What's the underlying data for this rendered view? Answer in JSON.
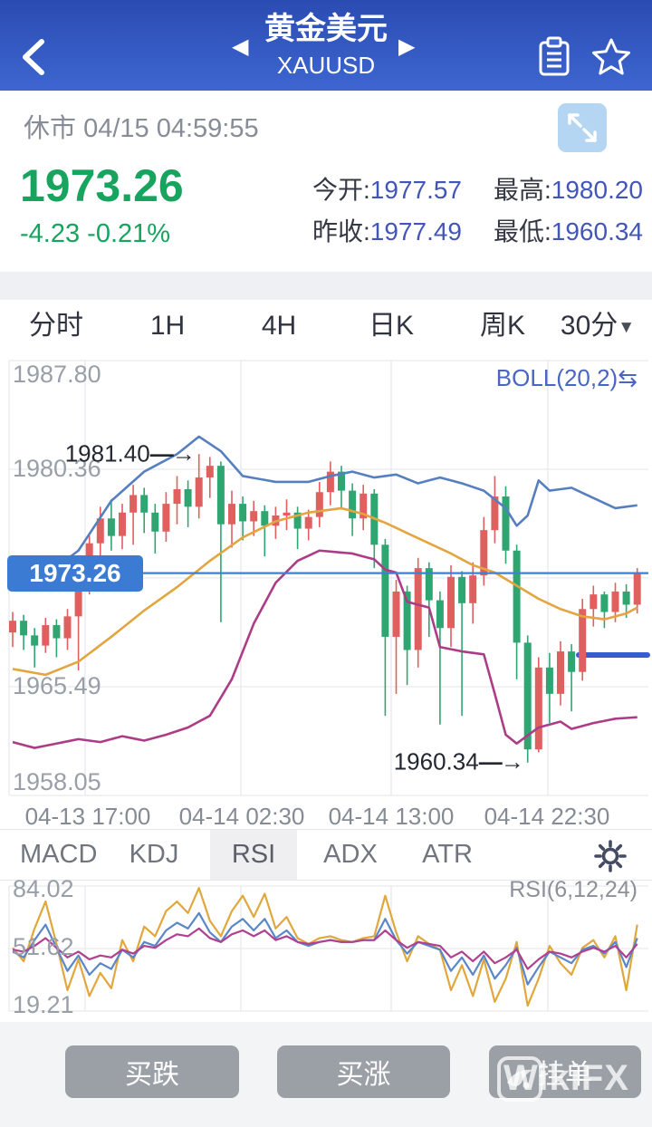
{
  "header": {
    "title": "黄金美元",
    "subtitle": "XAUUSD"
  },
  "icons": {
    "prev": "◀",
    "next": "▶",
    "caret_down": "▼",
    "swap": "⇆",
    "annotation_arrow": "→"
  },
  "status": {
    "market_state": "休市",
    "datetime": "04/15 04:59:55"
  },
  "quote": {
    "price": "1973.26",
    "change": "-4.23 -0.21%",
    "open_label": "今开:",
    "open": "1977.57",
    "high_label": "最高:",
    "high": "1980.20",
    "prev_close_label": "昨收:",
    "prev_close": "1977.49",
    "low_label": "最低:",
    "low": "1960.34"
  },
  "period_tabs": {
    "items": [
      "分时",
      "1H",
      "4H",
      "日K",
      "周K",
      "30分"
    ],
    "active": "30分"
  },
  "main_chart": {
    "indicator_label": "BOLL(20,2)",
    "y_labels": [
      "1987.80",
      "1980.36",
      "1965.49",
      "1958.05"
    ],
    "current_price_label": "1973.26",
    "x_labels": [
      "04-13 17:00",
      "04-14 02:30",
      "04-14 13:00",
      "04-14 22:30"
    ],
    "high_annotation": "1981.40",
    "low_annotation": "1960.34"
  },
  "indicator_tabs": {
    "items": [
      "MACD",
      "KDJ",
      "RSI",
      "ADX",
      "ATR"
    ],
    "active": "RSI"
  },
  "rsi_panel": {
    "legend": "RSI(6,12,24)",
    "y_labels": [
      "84.02",
      "51.62",
      "19.21"
    ]
  },
  "actions": {
    "buy_down": "买跌",
    "buy_up": "买涨",
    "pending_order": "挂单"
  },
  "watermark": {
    "text": "WikiFX"
  },
  "colors": {
    "up": "#e05f5f",
    "down": "#2fa671",
    "boll_upper": "#567fc0",
    "boll_mid": "#e2a540",
    "boll_lower": "#ad3c86",
    "price_line": "#3d7fd9",
    "grid": "#e7e9ed",
    "rsi6": "#e0a83c",
    "rsi12": "#5b87c7",
    "rsi24": "#b04090"
  },
  "chart_data": {
    "type": "candlestick",
    "symbol": "XAUUSD",
    "period": "30分",
    "overlay": "BOLL(20,2)",
    "y_axis_labels": [
      1987.8,
      1980.36,
      1965.49,
      1958.05
    ],
    "x_axis_labels": [
      "04-13 17:00",
      "04-14 02:30",
      "04-14 13:00",
      "04-14 22:30"
    ],
    "current_price": 1973.26,
    "quote": {
      "open": 1977.57,
      "high": 1980.2,
      "prev_close": 1977.49,
      "low": 1960.34,
      "change": -4.23,
      "change_pct": -0.21
    },
    "annotations": [
      {
        "kind": "high",
        "text": "1981.40",
        "price": 1981.4,
        "index": 17
      },
      {
        "kind": "low",
        "text": "1960.34",
        "price": 1960.34,
        "index": 47
      }
    ],
    "candles_ohlc_format": [
      "open",
      "close",
      "low",
      "high"
    ],
    "candles": [
      [
        1969.2,
        1970.0,
        1968.2,
        1970.6
      ],
      [
        1970.0,
        1969.0,
        1968.0,
        1970.4
      ],
      [
        1969.0,
        1968.3,
        1966.8,
        1969.5
      ],
      [
        1968.3,
        1969.7,
        1967.8,
        1970.2
      ],
      [
        1969.7,
        1968.8,
        1967.5,
        1970.1
      ],
      [
        1968.8,
        1970.3,
        1968.0,
        1970.8
      ],
      [
        1970.3,
        1972.6,
        1966.6,
        1973.0
      ],
      [
        1972.6,
        1975.3,
        1971.8,
        1975.9
      ],
      [
        1975.3,
        1977.0,
        1974.4,
        1977.8
      ],
      [
        1977.0,
        1975.8,
        1974.8,
        1978.3
      ],
      [
        1975.8,
        1977.4,
        1974.9,
        1978.0
      ],
      [
        1977.4,
        1978.6,
        1975.2,
        1979.3
      ],
      [
        1978.6,
        1977.4,
        1976.0,
        1979.1
      ],
      [
        1977.4,
        1976.1,
        1974.6,
        1978.0
      ],
      [
        1976.1,
        1978.0,
        1975.4,
        1978.8
      ],
      [
        1978.0,
        1979.0,
        1976.6,
        1979.9
      ],
      [
        1979.0,
        1977.8,
        1976.4,
        1979.6
      ],
      [
        1977.8,
        1979.8,
        1977.0,
        1981.4
      ],
      [
        1979.8,
        1980.6,
        1978.4,
        1981.2
      ],
      [
        1980.6,
        1976.6,
        1969.9,
        1980.9
      ],
      [
        1976.6,
        1978.0,
        1975.0,
        1978.9
      ],
      [
        1978.0,
        1976.8,
        1975.5,
        1978.5
      ],
      [
        1976.8,
        1977.5,
        1975.8,
        1978.2
      ],
      [
        1977.5,
        1976.5,
        1974.4,
        1977.9
      ],
      [
        1976.5,
        1977.2,
        1975.6,
        1977.8
      ],
      [
        1977.2,
        1977.4,
        1976.2,
        1978.3
      ],
      [
        1977.4,
        1976.3,
        1974.9,
        1977.8
      ],
      [
        1976.3,
        1977.1,
        1975.5,
        1977.6
      ],
      [
        1977.1,
        1978.8,
        1976.4,
        1979.5
      ],
      [
        1978.8,
        1980.2,
        1977.9,
        1980.9
      ],
      [
        1980.2,
        1978.9,
        1977.6,
        1980.6
      ],
      [
        1978.9,
        1977.0,
        1975.8,
        1979.4
      ],
      [
        1977.0,
        1978.7,
        1976.2,
        1979.3
      ],
      [
        1978.7,
        1975.2,
        1973.6,
        1979.0
      ],
      [
        1975.2,
        1968.9,
        1963.5,
        1975.6
      ],
      [
        1968.9,
        1972.0,
        1965.0,
        1972.8
      ],
      [
        1972.0,
        1968.0,
        1965.6,
        1972.4
      ],
      [
        1968.0,
        1973.6,
        1966.8,
        1974.3
      ],
      [
        1973.6,
        1971.4,
        1968.9,
        1974.0
      ],
      [
        1971.4,
        1969.5,
        1962.9,
        1972.0
      ],
      [
        1969.5,
        1973.0,
        1968.2,
        1973.8
      ],
      [
        1973.0,
        1971.2,
        1963.5,
        1973.4
      ],
      [
        1971.2,
        1973.1,
        1969.8,
        1974.0
      ],
      [
        1973.1,
        1976.2,
        1972.4,
        1977.1
      ],
      [
        1976.2,
        1978.5,
        1975.3,
        1979.9
      ],
      [
        1978.5,
        1974.8,
        1973.9,
        1979.2
      ],
      [
        1974.8,
        1968.5,
        1966.0,
        1975.2
      ],
      [
        1968.5,
        1961.2,
        1960.3,
        1969.0
      ],
      [
        1961.2,
        1966.8,
        1961.0,
        1967.5
      ],
      [
        1966.8,
        1965.0,
        1963.0,
        1967.8
      ],
      [
        1965.0,
        1967.9,
        1964.2,
        1968.6
      ],
      [
        1967.9,
        1966.5,
        1963.8,
        1968.4
      ],
      [
        1966.5,
        1970.8,
        1965.9,
        1971.5
      ],
      [
        1970.8,
        1971.8,
        1969.6,
        1972.4
      ],
      [
        1971.8,
        1970.6,
        1969.5,
        1972.0
      ],
      [
        1970.6,
        1972.0,
        1969.9,
        1972.6
      ],
      [
        1972.0,
        1971.1,
        1970.2,
        1972.5
      ],
      [
        1971.1,
        1973.26,
        1970.5,
        1973.6
      ]
    ],
    "boll_bands_control_points": {
      "upper": [
        [
          0,
          1973.6
        ],
        [
          3,
          1973.1
        ],
        [
          6,
          1974.8
        ],
        [
          9,
          1978.2
        ],
        [
          12,
          1980.2
        ],
        [
          15,
          1981.4
        ],
        [
          17,
          1982.6
        ],
        [
          19,
          1981.6
        ],
        [
          21,
          1979.9
        ],
        [
          24,
          1979.5
        ],
        [
          27,
          1979.5
        ],
        [
          29,
          1979.9
        ],
        [
          31,
          1980.2
        ],
        [
          33,
          1979.8
        ],
        [
          35,
          1980.0
        ],
        [
          37,
          1979.4
        ],
        [
          39,
          1979.8
        ],
        [
          41,
          1979.4
        ],
        [
          43,
          1978.9
        ],
        [
          45,
          1977.7
        ],
        [
          46,
          1976.5
        ],
        [
          47,
          1977.2
        ],
        [
          48,
          1979.6
        ],
        [
          49,
          1978.9
        ],
        [
          51,
          1979.1
        ],
        [
          53,
          1978.4
        ],
        [
          55,
          1977.7
        ],
        [
          57,
          1977.9
        ]
      ],
      "middle": [
        [
          0,
          1966.7
        ],
        [
          3,
          1966.3
        ],
        [
          6,
          1967.2
        ],
        [
          9,
          1968.9
        ],
        [
          12,
          1970.7
        ],
        [
          15,
          1972.3
        ],
        [
          18,
          1974.1
        ],
        [
          21,
          1975.7
        ],
        [
          24,
          1976.8
        ],
        [
          27,
          1977.4
        ],
        [
          30,
          1977.7
        ],
        [
          32,
          1977.3
        ],
        [
          34,
          1976.7
        ],
        [
          36,
          1976.0
        ],
        [
          38,
          1975.3
        ],
        [
          40,
          1974.6
        ],
        [
          42,
          1973.8
        ],
        [
          44,
          1973.3
        ],
        [
          46,
          1972.4
        ],
        [
          48,
          1971.5
        ],
        [
          50,
          1970.8
        ],
        [
          52,
          1970.3
        ],
        [
          54,
          1970.1
        ],
        [
          56,
          1970.5
        ],
        [
          57,
          1970.9
        ]
      ],
      "lower": [
        [
          0,
          1961.7
        ],
        [
          2,
          1961.3
        ],
        [
          4,
          1961.6
        ],
        [
          6,
          1961.9
        ],
        [
          8,
          1961.7
        ],
        [
          10,
          1962.1
        ],
        [
          12,
          1961.8
        ],
        [
          14,
          1962.2
        ],
        [
          16,
          1962.7
        ],
        [
          18,
          1963.5
        ],
        [
          20,
          1966.0
        ],
        [
          22,
          1969.8
        ],
        [
          24,
          1972.6
        ],
        [
          26,
          1974.1
        ],
        [
          28,
          1974.8
        ],
        [
          31,
          1974.6
        ],
        [
          33,
          1974.2
        ],
        [
          34,
          1973.5
        ],
        [
          35,
          1973.3
        ],
        [
          36,
          1971.3
        ],
        [
          38,
          1970.9
        ],
        [
          39,
          1968.2
        ],
        [
          41,
          1967.9
        ],
        [
          43,
          1967.7
        ],
        [
          44,
          1965.0
        ],
        [
          45,
          1962.2
        ],
        [
          46,
          1961.6
        ],
        [
          48,
          1962.7
        ],
        [
          50,
          1963.1
        ],
        [
          51,
          1962.6
        ],
        [
          53,
          1963.0
        ],
        [
          55,
          1963.3
        ],
        [
          57,
          1963.4
        ]
      ]
    },
    "rsi": {
      "params": [
        6,
        12,
        24
      ],
      "y_range": [
        19.21,
        84.02
      ],
      "mid_label": 51.62,
      "series": [
        {
          "name": "RSI6",
          "values": [
            52,
            45,
            62,
            76,
            54,
            30,
            46,
            27,
            39,
            31,
            56,
            45,
            63,
            58,
            71,
            76,
            70,
            83,
            66,
            58,
            71,
            79,
            68,
            80,
            62,
            68,
            57,
            54,
            57,
            58,
            56,
            55,
            57,
            58,
            79,
            60,
            45,
            58,
            54,
            51,
            30,
            43,
            27,
            46,
            24,
            36,
            55,
            22,
            36,
            53,
            44,
            38,
            52,
            56,
            47,
            58,
            30,
            64
          ]
        },
        {
          "name": "RSI12",
          "values": [
            50,
            47,
            56,
            64,
            52,
            40,
            48,
            38,
            44,
            41,
            51,
            47,
            55,
            53,
            61,
            65,
            62,
            70,
            60,
            55,
            63,
            67,
            61,
            67,
            57,
            61,
            55,
            53,
            55,
            56,
            55,
            55,
            56,
            56,
            67,
            56,
            49,
            55,
            53,
            51,
            40,
            47,
            38,
            48,
            36,
            43,
            52,
            33,
            42,
            50,
            47,
            44,
            51,
            53,
            49,
            55,
            42,
            57
          ]
        },
        {
          "name": "RSI24",
          "values": [
            51,
            50,
            53,
            57,
            52,
            47,
            50,
            46,
            48,
            47,
            51,
            49,
            53,
            52,
            56,
            59,
            58,
            62,
            57,
            55,
            59,
            61,
            58,
            61,
            56,
            58,
            55,
            54,
            55,
            56,
            55,
            55,
            56,
            56,
            61,
            56,
            52,
            55,
            54,
            53,
            47,
            50,
            45,
            50,
            44,
            47,
            51,
            41,
            46,
            50,
            49,
            47,
            50,
            52,
            50,
            53,
            47,
            54
          ]
        }
      ]
    }
  }
}
